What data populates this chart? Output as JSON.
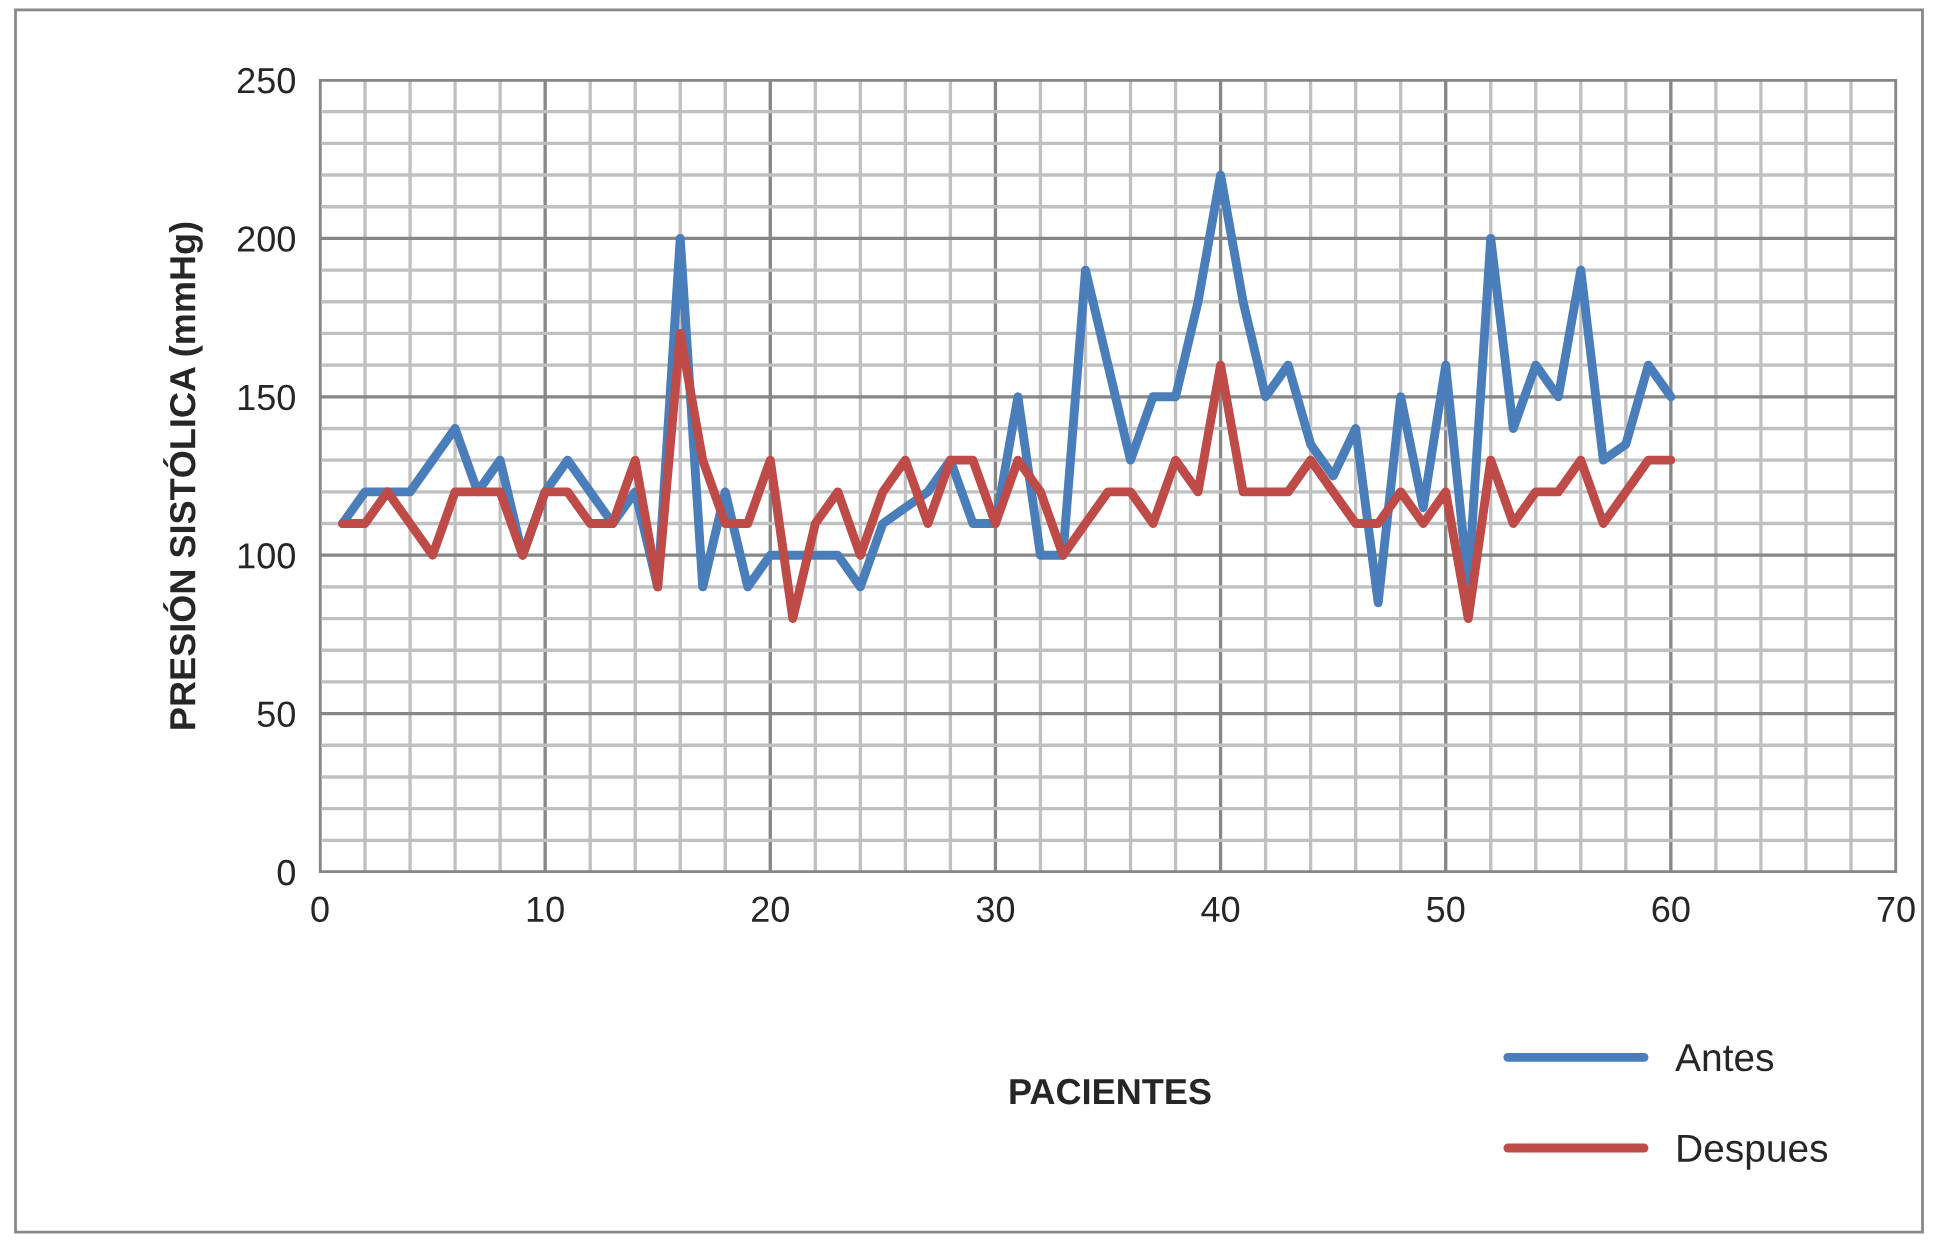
{
  "chart_data": {
    "type": "line",
    "xlabel": "PACIENTES",
    "ylabel": "PRESIÓN SISTÓLICA (mmHg)",
    "x": [
      1,
      2,
      3,
      4,
      5,
      6,
      7,
      8,
      9,
      10,
      11,
      12,
      13,
      14,
      15,
      16,
      17,
      18,
      19,
      20,
      21,
      22,
      23,
      24,
      25,
      26,
      27,
      28,
      29,
      30,
      31,
      32,
      33,
      34,
      35,
      36,
      37,
      38,
      39,
      40,
      41,
      42,
      43,
      44,
      45,
      46,
      47,
      48,
      49,
      50,
      51,
      52,
      53,
      54,
      55,
      56,
      57,
      58,
      59,
      60
    ],
    "series": [
      {
        "name": "Antes",
        "color": "#4a7ebb",
        "values": [
          110,
          120,
          120,
          120,
          130,
          140,
          120,
          130,
          100,
          120,
          130,
          120,
          110,
          120,
          90,
          200,
          90,
          120,
          90,
          100,
          100,
          100,
          100,
          90,
          110,
          115,
          120,
          130,
          110,
          110,
          150,
          100,
          100,
          190,
          160,
          130,
          150,
          150,
          180,
          220,
          180,
          150,
          160,
          135,
          125,
          140,
          85,
          150,
          115,
          160,
          90,
          200,
          140,
          160,
          150,
          190,
          130,
          135,
          160,
          150
        ]
      },
      {
        "name": "Despues",
        "color": "#be4b48",
        "values": [
          110,
          110,
          120,
          110,
          100,
          120,
          120,
          120,
          100,
          120,
          120,
          110,
          110,
          130,
          90,
          170,
          130,
          110,
          110,
          130,
          80,
          110,
          120,
          100,
          120,
          130,
          110,
          130,
          130,
          110,
          130,
          120,
          100,
          110,
          120,
          120,
          110,
          130,
          120,
          160,
          120,
          120,
          120,
          130,
          120,
          110,
          110,
          120,
          110,
          120,
          80,
          130,
          110,
          120,
          120,
          130,
          110,
          120,
          130,
          130
        ]
      }
    ],
    "xlim": [
      0,
      70
    ],
    "xticks": [
      0,
      10,
      20,
      30,
      40,
      50,
      60,
      70
    ],
    "ylim": [
      0,
      250
    ],
    "yticks": [
      0,
      50,
      100,
      150,
      200,
      250
    ],
    "grid": true,
    "legend": "bottom right",
    "marker": "none",
    "line_style": "solid"
  }
}
